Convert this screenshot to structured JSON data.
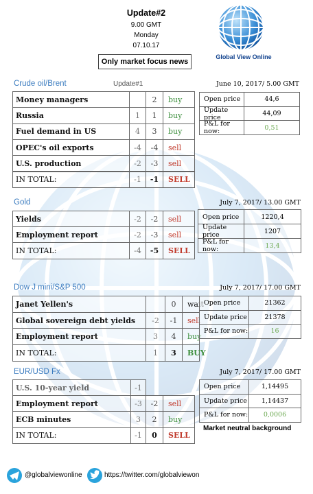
{
  "header": {
    "title": "Update#2",
    "time": "9.00 GMT",
    "day": "Monday",
    "date": "07.10.17",
    "tagline": "Only market focus news",
    "brand": "Global View Online"
  },
  "sections": [
    {
      "title": "Crude oil/Brent",
      "note": "Update#1",
      "rows": [
        [
          "Money managers",
          null,
          "2",
          "buy"
        ],
        [
          "Russia",
          "1",
          "1",
          "buy"
        ],
        [
          "Fuel demand in US",
          "4",
          "3",
          "buy"
        ],
        [
          "OPEC's oil exports",
          "-4",
          "-4",
          "sell"
        ],
        [
          "U.S. production",
          "-2",
          "-3",
          "sell"
        ],
        [
          "IN TOTAL:",
          "-1",
          "-1",
          "SELL"
        ]
      ],
      "info_date": "June 10, 2017/ 5.00 GMT",
      "info": [
        [
          "Open price",
          "44,6"
        ],
        [
          "Update price",
          "44,09"
        ],
        [
          "P&L for now:",
          "0,51"
        ]
      ]
    },
    {
      "title": "Gold",
      "rows": [
        [
          "Yields",
          "-2",
          "-2",
          "sell"
        ],
        [
          "Employment report",
          "-2",
          "-3",
          "sell"
        ],
        [
          "IN TOTAL:",
          "-4",
          "-5",
          "SELL"
        ]
      ],
      "info_date": "July 7, 2017/ 13.00 GMT",
      "info": [
        [
          "Open price",
          "1220,4"
        ],
        [
          "Update price",
          "1207"
        ],
        [
          "P&L for now:",
          "13,4"
        ]
      ]
    },
    {
      "title": "Dow J mini/S&P 500",
      "rows": [
        [
          "Janet Yellen's",
          null,
          "0",
          "wait"
        ],
        [
          "Global sovereign debt yields",
          "-2",
          "-1",
          "sell"
        ],
        [
          "Employment report",
          "3",
          "4",
          "buy"
        ],
        [
          "IN TOTAL:",
          "1",
          "3",
          "BUY"
        ]
      ],
      "info_date": "July 7, 2017/ 17.00 GMT",
      "info": [
        [
          "Open price",
          "21362"
        ],
        [
          "Update price",
          "21378"
        ],
        [
          "P&L for now:",
          "16"
        ]
      ]
    },
    {
      "title": "EUR/USD Fx",
      "rows": [
        [
          "U.S. 10-year yield",
          "-1",
          null,
          null
        ],
        [
          "Employment report",
          "-3",
          "-2",
          "sell"
        ],
        [
          "ECB minutes",
          "3",
          "2",
          "buy"
        ],
        [
          "IN TOTAL:",
          "-1",
          "0",
          "SELL"
        ]
      ],
      "info_date": "July 7, 2017/ 17.00 GMT",
      "info": [
        [
          "Open price",
          "1,14495"
        ],
        [
          "Update price",
          "1,14437"
        ],
        [
          "P&L for now:",
          "0,0006"
        ]
      ],
      "info_note": "Market neutral background"
    }
  ],
  "footer": {
    "telegram": "@globalviewonline",
    "twitter": "https://twitter.com/globalviewon"
  }
}
